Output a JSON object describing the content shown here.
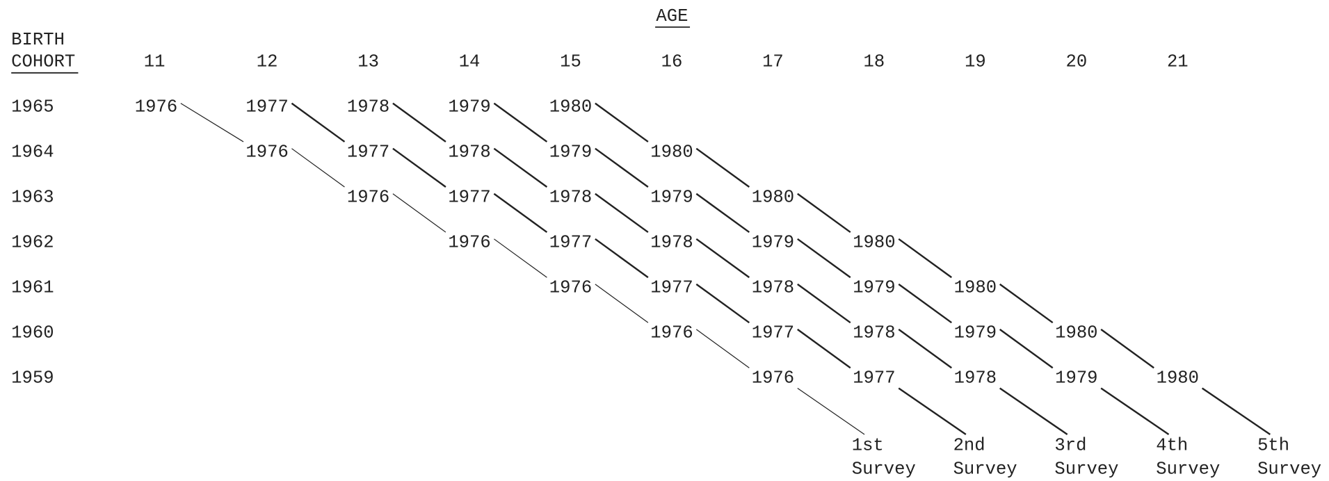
{
  "age_header": "AGE",
  "row_header": [
    "BIRTH",
    "COHORT"
  ],
  "ages": [
    "11",
    "12",
    "13",
    "14",
    "15",
    "16",
    "17",
    "18",
    "19",
    "20",
    "21"
  ],
  "rows": [
    {
      "cohort": "1965",
      "years": [
        "1976",
        "1977",
        "1978",
        "1979",
        "1980"
      ]
    },
    {
      "cohort": "1964",
      "years": [
        "1976",
        "1977",
        "1978",
        "1979",
        "1980"
      ]
    },
    {
      "cohort": "1963",
      "years": [
        "1976",
        "1977",
        "1978",
        "1979",
        "1980"
      ]
    },
    {
      "cohort": "1962",
      "years": [
        "1976",
        "1977",
        "1978",
        "1979",
        "1980"
      ]
    },
    {
      "cohort": "1961",
      "years": [
        "1976",
        "1977",
        "1978",
        "1979",
        "1980"
      ]
    },
    {
      "cohort": "1960",
      "years": [
        "1976",
        "1977",
        "1978",
        "1979",
        "1980"
      ]
    },
    {
      "cohort": "1959",
      "years": [
        "1976",
        "1977",
        "1978",
        "1979",
        "1980"
      ]
    }
  ],
  "surveys": [
    {
      "ordinal": "1st",
      "label": "Survey"
    },
    {
      "ordinal": "2nd",
      "label": "Survey"
    },
    {
      "ordinal": "3rd",
      "label": "Survey"
    },
    {
      "ordinal": "4th",
      "label": "Survey"
    },
    {
      "ordinal": "5th",
      "label": "Survey"
    }
  ]
}
